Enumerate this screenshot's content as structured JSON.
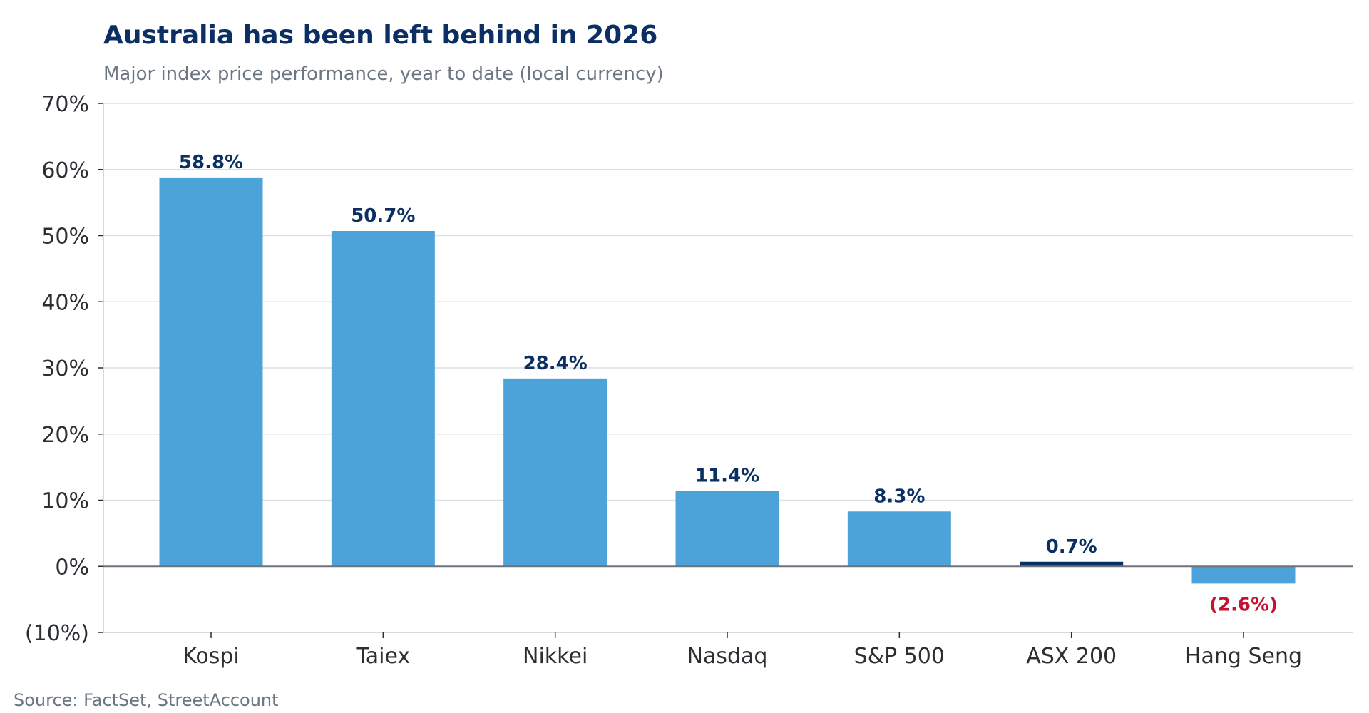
{
  "chart_data": {
    "type": "bar",
    "title": "Australia has been left behind in 2026",
    "subtitle": "Major index price performance, year to date (local currency)",
    "categories": [
      "Kospi",
      "Taiex",
      "Nikkei",
      "Nasdaq",
      "S&P 500",
      "ASX 200",
      "Hang Seng"
    ],
    "values": [
      58.8,
      50.7,
      28.4,
      11.4,
      8.3,
      0.7,
      -2.6
    ],
    "data_labels": [
      "58.8%",
      "50.7%",
      "28.4%",
      "11.4%",
      "8.3%",
      "0.7%",
      "(2.6%)"
    ],
    "xlabel": "",
    "ylabel": "",
    "ylim": [
      -10,
      70
    ],
    "yticks": [
      -10,
      0,
      10,
      20,
      30,
      40,
      50,
      60,
      70
    ],
    "ytick_labels": [
      "(10%)",
      "0%",
      "10%",
      "20%",
      "30%",
      "40%",
      "50%",
      "60%",
      "70%"
    ],
    "grid": true,
    "legend": "none",
    "highlight_category": "ASX 200",
    "source": "Source: FactSet, StreetAccount",
    "colors": {
      "bar": "#4ba3da",
      "highlight_bar": "#073166",
      "title": "#0b2f63",
      "subtitle": "#6b7683",
      "tick_text": "#2b2f33",
      "positive_label": "#0b2f63",
      "negative_label": "#c41230",
      "grid": "#dcdfe3",
      "zero_line": "#6b747d",
      "axis": "#c9cdd6",
      "source": "#6b7683"
    }
  }
}
